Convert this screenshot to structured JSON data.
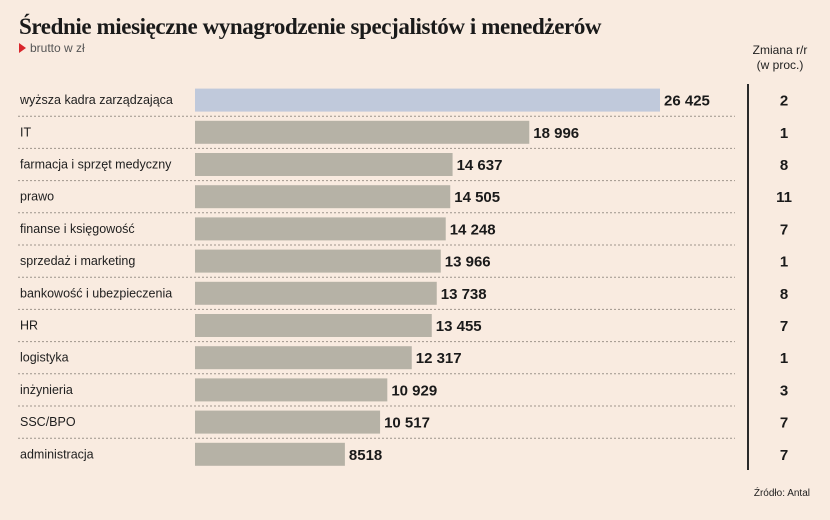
{
  "chart_data": {
    "type": "bar",
    "orientation": "horizontal",
    "title": "Średnie miesięczne wynagrodzenie specjalistów i menedżerów",
    "subtitle": "brutto w zł",
    "categories": [
      "wyższa kadra zarządzająca",
      "IT",
      "farmacja i sprzęt medyczny",
      "prawo",
      "finanse i księgowość",
      "sprzedaż i marketing",
      "bankowość i ubezpieczenia",
      "HR",
      "logistyka",
      "inżynieria",
      "SSC/BPO",
      "administracja"
    ],
    "values": [
      26425,
      18996,
      14637,
      14505,
      14248,
      13966,
      13738,
      13455,
      12317,
      10929,
      10517,
      8518
    ],
    "value_labels": [
      "26 425",
      "18 996",
      "14 637",
      "14 505",
      "14 248",
      "13 966",
      "13 738",
      "13 455",
      "12 317",
      "10 929",
      "10 517",
      "8518"
    ],
    "change_header": [
      "Zmiana r/r",
      "(w proc.)"
    ],
    "change": [
      "2",
      "1",
      "8",
      "11",
      "7",
      "1",
      "8",
      "7",
      "1",
      "3",
      "7",
      "7"
    ],
    "highlight_index": 0,
    "colors": {
      "bar": "#b6b2a6",
      "highlight": "#c0c9db",
      "background": "#f9ebe0",
      "divider": "#9e958c"
    },
    "source": "Źródło: Antal",
    "grid": false,
    "legend": "none"
  }
}
